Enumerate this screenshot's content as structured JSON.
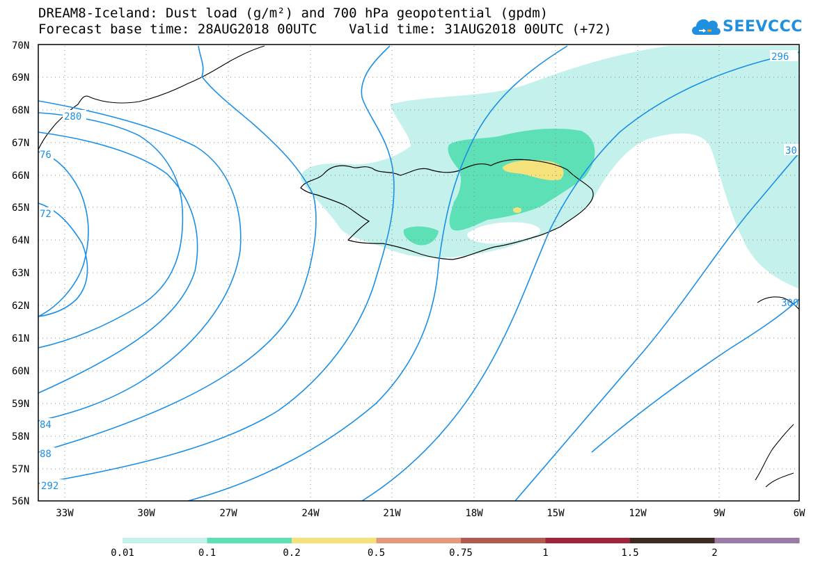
{
  "header": {
    "title_line1": "DREAM8-Iceland: Dust load (g/m²) and 700 hPa geopotential (gpdm)",
    "title_line2": "Forecast base time: 28AUG2018 00UTC    Valid time: 31AUG2018 00UTC (+72)",
    "logo_text": "SEEVCCC"
  },
  "axes": {
    "lat_labels": [
      "70N",
      "69N",
      "68N",
      "67N",
      "66N",
      "65N",
      "64N",
      "63N",
      "62N",
      "61N",
      "60N",
      "59N",
      "58N",
      "57N",
      "56N"
    ],
    "lon_labels": [
      "33W",
      "30W",
      "27W",
      "24W",
      "21W",
      "18W",
      "15W",
      "12W",
      "9W",
      "6W"
    ]
  },
  "contour_labels": [
    "280",
    "296",
    "76",
    "72",
    "84",
    "88",
    "292",
    "30",
    "300"
  ],
  "legend": {
    "labels": [
      "0.01",
      "0.1",
      "0.2",
      "0.5",
      "0.75",
      "1",
      "1.5",
      "2"
    ],
    "colors": [
      "#c4f1ec",
      "#5ee0b6",
      "#f5e27a",
      "#e8987a",
      "#b55a4e",
      "#a0243c",
      "#3d2a22",
      "#9a7ba8"
    ]
  },
  "colors": {
    "contour": "#1a8fe8",
    "dust_low": "#c4f1ec",
    "dust_mid": "#5ee0b6",
    "dust_high": "#f5e27a"
  }
}
